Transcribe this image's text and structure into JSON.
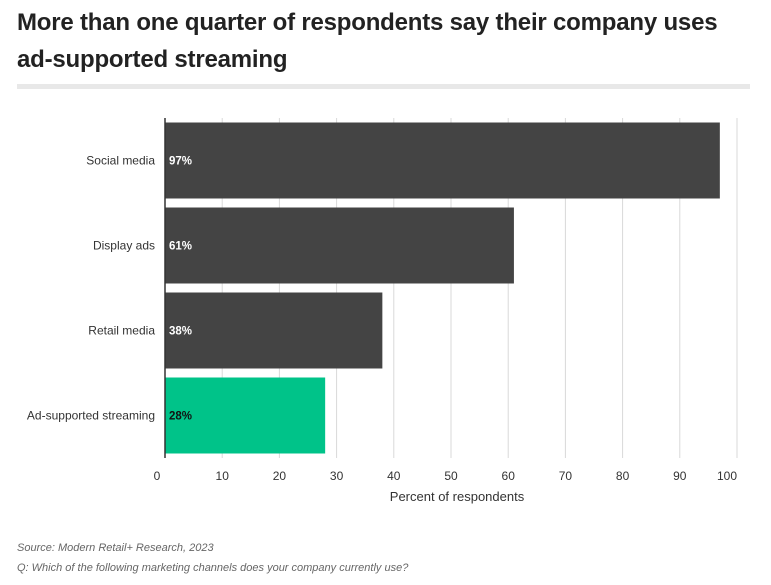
{
  "title": "More than one quarter of respondents say their company uses ad-supported streaming",
  "source": "Source: Modern Retail+ Research, 2023",
  "question": "Q: Which of the following marketing channels does your company currently use?",
  "colors": {
    "bar": "#444444",
    "highlight": "#00c389",
    "grid": "#d9d9d9",
    "axis": "#333333"
  },
  "chart_data": {
    "type": "bar",
    "orientation": "horizontal",
    "categories": [
      "Social media",
      "Display ads",
      "Retail media",
      "Ad-supported streaming"
    ],
    "values": [
      97,
      61,
      38,
      28
    ],
    "data_labels": [
      "97%",
      "61%",
      "38%",
      "28%"
    ],
    "highlight_index": 3,
    "xlabel": "Percent of respondents",
    "ylabel": "",
    "xlim": [
      0,
      100
    ],
    "xticks": [
      0,
      10,
      20,
      30,
      40,
      50,
      60,
      70,
      80,
      90,
      100
    ],
    "grid": true
  }
}
